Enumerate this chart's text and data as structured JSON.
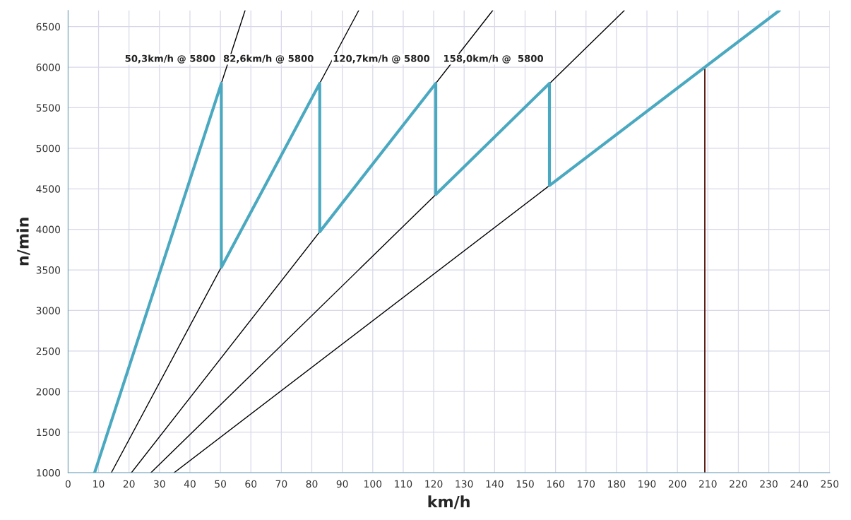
{
  "chart_data": {
    "type": "line",
    "xlabel": "km/h",
    "ylabel": "n/min",
    "xlim": [
      0,
      250
    ],
    "xticks": [
      0,
      10,
      20,
      30,
      40,
      50,
      60,
      70,
      80,
      90,
      100,
      110,
      120,
      130,
      140,
      150,
      160,
      170,
      180,
      190,
      200,
      210,
      220,
      230,
      240,
      250
    ],
    "ylim": [
      1000,
      6700
    ],
    "yticks": [
      1000,
      1500,
      2000,
      2500,
      3000,
      3500,
      4000,
      4500,
      5000,
      5500,
      6000,
      6500
    ],
    "grid": true,
    "legend": false,
    "marker": "none",
    "line_style": "solid",
    "series": [
      {
        "color": "#000000",
        "x": [
          50.3,
          58.1
        ],
        "values": [
          5800,
          6700
        ]
      },
      {
        "color": "#000000",
        "x": [
          14.2,
          95.4
        ],
        "values": [
          1000,
          6700
        ]
      },
      {
        "color": "#000000",
        "x": [
          20.8,
          139.4
        ],
        "values": [
          1000,
          6700
        ]
      },
      {
        "color": "#000000",
        "x": [
          27.2,
          182.6
        ],
        "values": [
          1000,
          6700
        ]
      },
      {
        "color": "#000000",
        "x": [
          34.8,
          158.0
        ],
        "values": [
          1000,
          4540
        ]
      },
      {
        "color": "#4aa9c0",
        "x": [
          8.7,
          50.3,
          50.3,
          82.6,
          82.6,
          120.7,
          120.7,
          158.0,
          158.0,
          233.5
        ],
        "values": [
          1000,
          5800,
          3530,
          5800,
          3970,
          5800,
          4430,
          5800,
          4540,
          6700
        ]
      },
      {
        "color": "#5a1a10",
        "x": [
          209,
          209
        ],
        "values": [
          1000,
          6000
        ]
      }
    ],
    "annotations": [
      {
        "text": "50,3km/h @ 5800",
        "x": 50.3,
        "y": 5800
      },
      {
        "text": "82,6km/h @ 5800",
        "x": 82.6,
        "y": 5800
      },
      {
        "text": "120,7km/h @ 5800",
        "x": 120.7,
        "y": 5800
      },
      {
        "text": "158,0km/h @  5800",
        "x": 158.0,
        "y": 5800
      }
    ]
  }
}
